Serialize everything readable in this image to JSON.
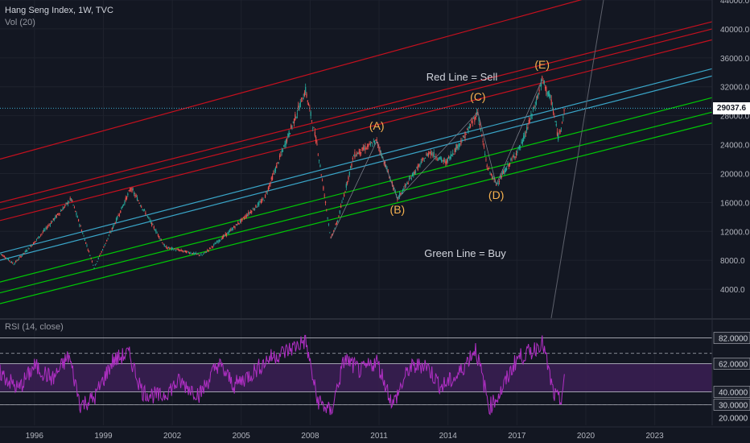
{
  "header": {
    "title": "Hang Seng Index, 1W, TVC",
    "volume": "Vol (20)",
    "rsi_title": "RSI (14, close)"
  },
  "current_price": "29037.6",
  "annotations": {
    "red_line_label": "Red Line = Sell",
    "green_line_label": "Green Line = Buy",
    "waves": [
      "(A)",
      "(B)",
      "(C)",
      "(D)",
      "(E)"
    ]
  },
  "colors": {
    "background": "#131722",
    "grid": "#1e222d",
    "sell_line": "#c4101e",
    "buy_line": "#00c805",
    "mid_line": "#3aa6c9",
    "wave_label": "#f7b24f",
    "rsi_line": "#b02fc4",
    "rsi_band": "#3b1f53"
  },
  "chart_data": [
    {
      "type": "candlestick",
      "title": "Hang Seng Index, 1W, TVC",
      "x_ticks": [
        "1996",
        "1999",
        "2002",
        "2005",
        "2008",
        "2011",
        "2014",
        "2017",
        "2020",
        "2023"
      ],
      "y_ticks": [
        "4000.0",
        "8000.0",
        "12000.0",
        "16000.0",
        "20000.0",
        "24000.0",
        "28000.0",
        "32000.0",
        "36000.0",
        "40000.0",
        "44000.0"
      ],
      "ylim": [
        0,
        44000
      ],
      "xlim": [
        1994.5,
        2025.5
      ],
      "series": [
        {
          "x": [
            1994.5,
            1995.1,
            1996.0,
            1997.6,
            1998.6,
            1999.7,
            2000.2,
            2001.7,
            2003.3,
            2004.5,
            2006.0,
            2007.8,
            2008.3,
            2008.9,
            2009.2,
            2009.9,
            2010.9,
            2011.8,
            2012.5,
            2013.2,
            2013.9,
            2014.7,
            2015.3,
            2015.7,
            2016.1,
            2016.6,
            2017.2,
            2017.8,
            2018.1,
            2018.5,
            2018.8,
            2019.1
          ],
          "values": [
            9000,
            7500,
            10500,
            16500,
            7000,
            14500,
            18000,
            9800,
            8700,
            12000,
            16500,
            31500,
            24000,
            11000,
            13500,
            22500,
            24500,
            16500,
            20000,
            23000,
            21500,
            25000,
            28500,
            21000,
            18500,
            21000,
            24000,
            29500,
            33000,
            30000,
            25000,
            29037.6
          ]
        }
      ],
      "annotations": [
        {
          "label": "(A)",
          "x": 2010.9,
          "y": 24500
        },
        {
          "label": "(B)",
          "x": 2011.8,
          "y": 16500
        },
        {
          "label": "(C)",
          "x": 2015.3,
          "y": 28500
        },
        {
          "label": "(D)",
          "x": 2016.1,
          "y": 18500
        },
        {
          "label": "(E)",
          "x": 2018.1,
          "y": 33000
        }
      ],
      "channel_lines": {
        "sell": [
          [
            1994.5,
            22000,
            2025.5,
            49000
          ],
          [
            1994.5,
            16000,
            2025.5,
            41000
          ],
          [
            1994.5,
            15000,
            2025.5,
            40000
          ],
          [
            1994.5,
            13500,
            2025.5,
            38500
          ]
        ],
        "mid": [
          [
            1994.5,
            9000,
            2025.5,
            34500
          ],
          [
            1994.5,
            8000,
            2025.5,
            33500
          ]
        ],
        "buy": [
          [
            1994.5,
            5000,
            2025.5,
            30500
          ],
          [
            1994.5,
            3500,
            2025.5,
            28500
          ],
          [
            1994.5,
            2000,
            2025.5,
            27000
          ]
        ]
      }
    },
    {
      "type": "line",
      "title": "RSI (14, close)",
      "y_ticks": [
        "82.0000",
        "62.0000",
        "40.0000",
        "30.0000",
        "20.0000"
      ],
      "ylim": [
        14,
        88
      ],
      "series": [
        {
          "x": [
            1994.5,
            1995.3,
            1996.0,
            1996.8,
            1997.5,
            1998.0,
            1998.6,
            1999.4,
            2000.1,
            2000.7,
            2001.5,
            2002.3,
            2003.2,
            2004.0,
            2004.7,
            2005.5,
            2006.2,
            2007.0,
            2007.8,
            2008.3,
            2008.9,
            2009.5,
            2010.2,
            2010.9,
            2011.6,
            2012.3,
            2013.0,
            2013.7,
            2014.4,
            2015.2,
            2015.8,
            2016.3,
            2017.0,
            2017.7,
            2018.1,
            2018.6,
            2018.9,
            2019.1
          ],
          "values": [
            55,
            42,
            60,
            50,
            68,
            30,
            35,
            64,
            70,
            40,
            36,
            48,
            38,
            62,
            45,
            55,
            66,
            72,
            80,
            34,
            24,
            66,
            56,
            64,
            30,
            58,
            62,
            44,
            52,
            74,
            28,
            40,
            66,
            72,
            80,
            38,
            32,
            55
          ]
        }
      ]
    }
  ]
}
